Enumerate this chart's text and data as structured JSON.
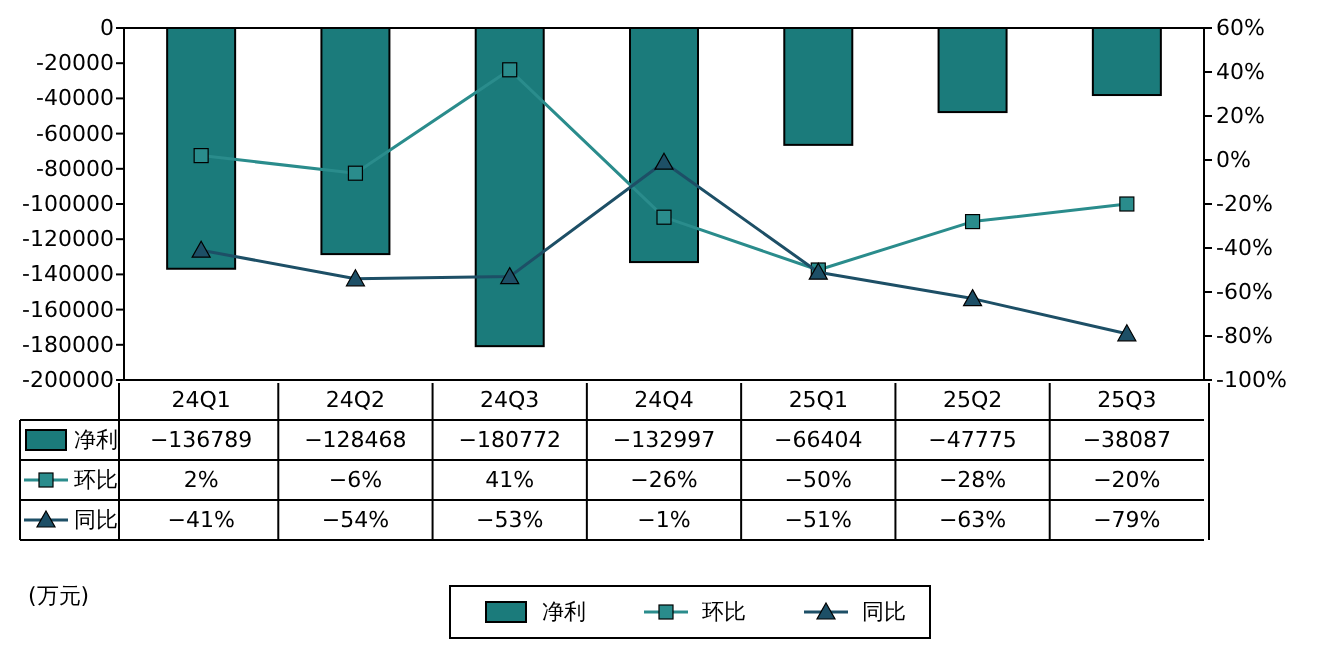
{
  "chart_data": {
    "type": "bar",
    "categories": [
      "24Q1",
      "24Q2",
      "24Q3",
      "24Q4",
      "25Q1",
      "25Q2",
      "25Q3"
    ],
    "series": [
      {
        "name": "净利",
        "color": "#1b7b7b",
        "values": [
          -136789,
          -128468,
          -180772,
          -132997,
          -66404,
          -47775,
          -38087
        ],
        "value_labels": [
          "−136789",
          "−128468",
          "−180772",
          "−132997",
          "−66404",
          "−47775",
          "−38087"
        ]
      },
      {
        "name": "环比",
        "type": "line",
        "axis": "y2",
        "marker": "square",
        "color": "#2a8c8c",
        "values": [
          2,
          -6,
          41,
          -26,
          -50,
          -28,
          -20
        ],
        "value_labels": [
          "2%",
          "−6%",
          "41%",
          "−26%",
          "−50%",
          "−28%",
          "−20%"
        ]
      },
      {
        "name": "同比",
        "type": "line",
        "axis": "y2",
        "marker": "triangle",
        "color": "#1d4f66",
        "values": [
          -41,
          -54,
          -53,
          -1,
          -51,
          -63,
          -79
        ],
        "value_labels": [
          "−41%",
          "−54%",
          "−53%",
          "−1%",
          "−51%",
          "−63%",
          "−79%"
        ]
      }
    ],
    "ylim": [
      -200000,
      0
    ],
    "yticks": [
      0,
      -20000,
      -40000,
      -60000,
      -80000,
      -100000,
      -120000,
      -140000,
      -160000,
      -180000,
      -200000
    ],
    "y2lim": [
      -100,
      60
    ],
    "y2ticks": [
      {
        "value": 60,
        "label": "60%"
      },
      {
        "value": 40,
        "label": "40%"
      },
      {
        "value": 20,
        "label": "20%"
      },
      {
        "value": 0,
        "label": "0%"
      },
      {
        "value": -20,
        "label": "-20%"
      },
      {
        "value": -40,
        "label": "-40%"
      },
      {
        "value": -60,
        "label": "-60%"
      },
      {
        "value": -80,
        "label": "-80%"
      },
      {
        "value": -100,
        "label": "-100%"
      }
    ],
    "legend": "bottom",
    "annotations": [
      "(万元)"
    ]
  }
}
